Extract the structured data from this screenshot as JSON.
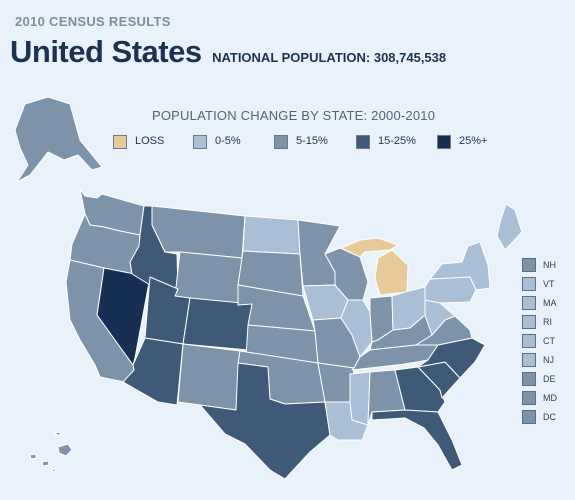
{
  "header": {
    "kicker": "2010 CENSUS RESULTS",
    "title": "United States",
    "population_label": "NATIONAL POPULATION: 308,745,538"
  },
  "legend": {
    "title": "POPULATION CHANGE BY STATE: 2000-2010",
    "items": [
      {
        "label": "LOSS",
        "color": "#e8c99a"
      },
      {
        "label": "0-5%",
        "color": "#a9bfd6"
      },
      {
        "label": "5-15%",
        "color": "#7c93aa"
      },
      {
        "label": "15-25%",
        "color": "#3f5a78"
      },
      {
        "label": "25%+",
        "color": "#172f52"
      }
    ]
  },
  "map": {
    "categories": {
      "WA": "5-15%",
      "OR": "5-15%",
      "CA": "5-15%",
      "NV": "25%+",
      "ID": "15-25%",
      "MT": "5-15%",
      "WY": "5-15%",
      "UT": "15-25%",
      "AZ": "15-25%",
      "CO": "15-25%",
      "NM": "5-15%",
      "ND": "0-5%",
      "SD": "5-15%",
      "NE": "5-15%",
      "KS": "5-15%",
      "OK": "5-15%",
      "TX": "15-25%",
      "MN": "5-15%",
      "IA": "0-5%",
      "MO": "5-15%",
      "AR": "5-15%",
      "LA": "0-5%",
      "WI": "5-15%",
      "IL": "0-5%",
      "MI": "LOSS",
      "IN": "5-15%",
      "OH": "0-5%",
      "KY": "5-15%",
      "TN": "5-15%",
      "MS": "0-5%",
      "AL": "5-15%",
      "GA": "15-25%",
      "FL": "15-25%",
      "SC": "15-25%",
      "NC": "15-25%",
      "VA": "5-15%",
      "WV": "0-5%",
      "PA": "0-5%",
      "NY": "0-5%",
      "ME": "0-5%",
      "AK": "5-15%",
      "HI": "5-15%"
    }
  },
  "small_states": [
    {
      "label": "NH",
      "category": "5-15%"
    },
    {
      "label": "VT",
      "category": "0-5%"
    },
    {
      "label": "MA",
      "category": "0-5%"
    },
    {
      "label": "RI",
      "category": "0-5%"
    },
    {
      "label": "CT",
      "category": "0-5%"
    },
    {
      "label": "NJ",
      "category": "0-5%"
    },
    {
      "label": "DE",
      "category": "5-15%"
    },
    {
      "label": "MD",
      "category": "5-15%"
    },
    {
      "label": "DC",
      "category": "5-15%"
    }
  ]
}
